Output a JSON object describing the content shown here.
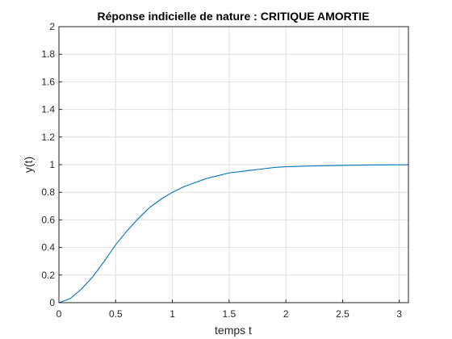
{
  "chart_data": {
    "type": "line",
    "title": "Réponse indicielle de nature : CRITIQUE AMORTIE",
    "xlabel": "temps t",
    "ylabel": "y(t)",
    "xlim": [
      0,
      3.08
    ],
    "ylim": [
      0,
      2
    ],
    "xticks": [
      "0",
      "0.5",
      "1",
      "1.5",
      "2",
      "2.5",
      "3"
    ],
    "xtick_values": [
      0,
      0.5,
      1,
      1.5,
      2,
      2.5,
      3
    ],
    "yticks": [
      "0",
      "0.2",
      "0.4",
      "0.6",
      "0.8",
      "1",
      "1.2",
      "1.4",
      "1.6",
      "1.8",
      "2"
    ],
    "ytick_values": [
      0,
      0.2,
      0.4,
      0.6,
      0.8,
      1,
      1.2,
      1.4,
      1.6,
      1.8,
      2
    ],
    "grid": true,
    "series": [
      {
        "color": "#0072bd",
        "x": [
          0,
          0.1,
          0.2,
          0.3,
          0.4,
          0.5,
          0.6,
          0.7,
          0.8,
          0.9,
          1.0,
          1.1,
          1.2,
          1.3,
          1.4,
          1.5,
          1.6,
          1.7,
          1.8,
          1.9,
          2.0,
          2.2,
          2.4,
          2.6,
          2.8,
          3.0,
          3.08
        ],
        "y": [
          0,
          0.03,
          0.1,
          0.19,
          0.3,
          0.42,
          0.52,
          0.61,
          0.69,
          0.75,
          0.8,
          0.84,
          0.87,
          0.9,
          0.92,
          0.94,
          0.95,
          0.96,
          0.97,
          0.98,
          0.985,
          0.99,
          0.993,
          0.996,
          0.998,
          0.999,
          0.999
        ]
      }
    ]
  }
}
